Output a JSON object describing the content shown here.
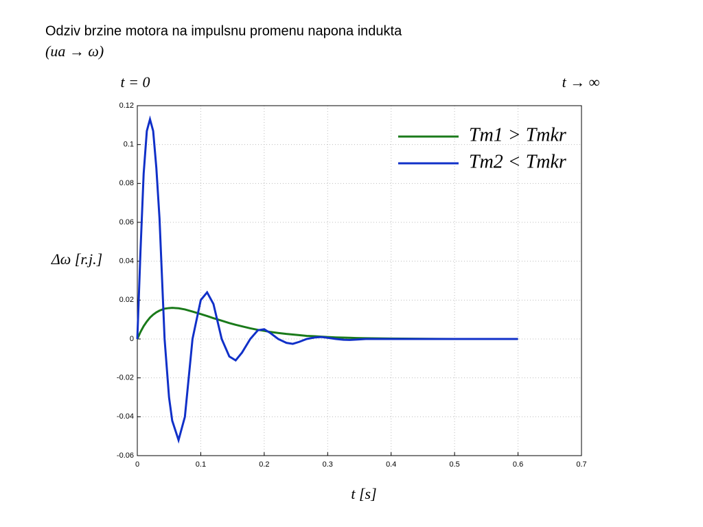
{
  "chart_data": {
    "type": "line",
    "title": "Odziv brzine motora na impulsnu promenu napona indukta",
    "subtitle": "(ua → ω)",
    "annotations": [
      "t = 0",
      "t → ∞"
    ],
    "x_label": "t [s]",
    "y_label": "Δω [r.j.]",
    "x": [
      0,
      0.005,
      0.01,
      0.015,
      0.02,
      0.025,
      0.03,
      0.035,
      0.043,
      0.05,
      0.055,
      0.065,
      0.075,
      0.087,
      0.1,
      0.11,
      0.12,
      0.133,
      0.145,
      0.155,
      0.165,
      0.178,
      0.19,
      0.2,
      0.21,
      0.222,
      0.235,
      0.245,
      0.255,
      0.267,
      0.28,
      0.29,
      0.3,
      0.313,
      0.325,
      0.335,
      0.345,
      0.36,
      0.4,
      0.5,
      0.6
    ],
    "series": [
      {
        "name": "Tm1 > Tmkr",
        "color": "#1a7a1a",
        "values": [
          0,
          0.0036,
          0.0066,
          0.009,
          0.011,
          0.0125,
          0.0137,
          0.0146,
          0.0156,
          0.0159,
          0.016,
          0.0158,
          0.0152,
          0.0141,
          0.0128,
          0.0118,
          0.0107,
          0.0094,
          0.0082,
          0.0073,
          0.0065,
          0.0055,
          0.0047,
          0.0042,
          0.0036,
          0.0031,
          0.0026,
          0.0023,
          0.002,
          0.0016,
          0.0014,
          0.0012,
          0.001,
          0.0008,
          0.0007,
          0.0006,
          0.0005,
          0.0004,
          0.0002,
          0,
          0
        ]
      },
      {
        "name": "Tm2 < Tmkr",
        "color": "#1030c8",
        "values": [
          0,
          0.045,
          0.085,
          0.107,
          0.113,
          0.107,
          0.088,
          0.062,
          0,
          -0.03,
          -0.042,
          -0.052,
          -0.04,
          0,
          0.02,
          0.024,
          0.018,
          0,
          -0.009,
          -0.011,
          -0.007,
          0,
          0.0045,
          0.005,
          0.003,
          0,
          -0.002,
          -0.0025,
          -0.0015,
          0,
          0.0008,
          0.001,
          0.0006,
          0,
          -0.0004,
          -0.0005,
          -0.0003,
          0,
          0,
          0,
          0
        ]
      }
    ],
    "xlim": [
      0,
      0.7
    ],
    "xticks": [
      0,
      0.1,
      0.2,
      0.3,
      0.4,
      0.5,
      0.6,
      0.7
    ],
    "ylim": [
      -0.06,
      0.12
    ],
    "yticks": [
      -0.06,
      -0.04,
      -0.02,
      0,
      0.02,
      0.04,
      0.06,
      0.08,
      0.1,
      0.12
    ],
    "grid": true,
    "legend": "upper right"
  }
}
